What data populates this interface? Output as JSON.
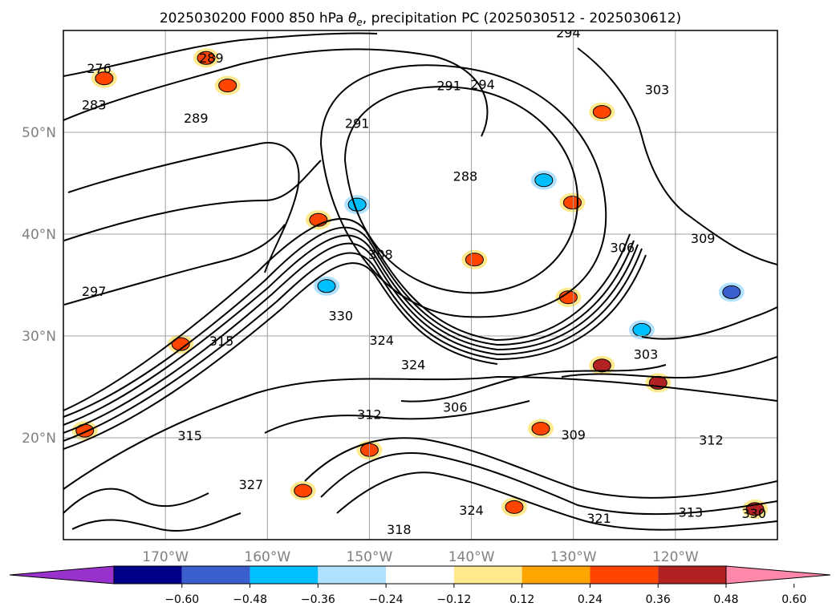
{
  "chart_data": {
    "type": "contour map",
    "title_prefix": "2025030200 F000 850 hPa ",
    "title_symbol": "θ",
    "title_subscript": "e",
    "title_suffix": ", precipitation PC (2025030512 - 2025030612)",
    "lon_range": [
      -180,
      -110
    ],
    "lat_range": [
      10,
      60
    ],
    "lat_ticks": [
      "50°N",
      "40°N",
      "30°N",
      "20°N"
    ],
    "lat_tick_values": [
      50,
      40,
      30,
      20
    ],
    "lon_ticks": [
      "170°W",
      "160°W",
      "150°W",
      "140°W",
      "130°W",
      "120°W"
    ],
    "lon_tick_values": [
      -170,
      -160,
      -150,
      -140,
      -130,
      -120
    ],
    "grid": true,
    "colorbar": {
      "ticks": [
        "−0.60",
        "−0.48",
        "−0.36",
        "−0.24",
        "−0.12",
        "0.12",
        "0.24",
        "0.36",
        "0.48",
        "0.60"
      ],
      "colors": [
        "#9932cc",
        "#00008b",
        "#3a5fcd",
        "#00bfff",
        "#b0e2ff",
        "#ffffff",
        "#ffe98c",
        "#ffa500",
        "#ff4500",
        "#b22222",
        "#ff88aa"
      ],
      "extend": "both"
    },
    "contour_labels": [
      {
        "text": "276",
        "lon": -176.5,
        "lat": 56.2
      },
      {
        "text": "283",
        "lon": -177,
        "lat": 52.6
      },
      {
        "text": "289",
        "lon": -165.5,
        "lat": 57.2
      },
      {
        "text": "289",
        "lon": -167,
        "lat": 51.3
      },
      {
        "text": "294",
        "lon": -130.5,
        "lat": 59.7
      },
      {
        "text": "291",
        "lon": -142.2,
        "lat": 54.5
      },
      {
        "text": "294",
        "lon": -138.9,
        "lat": 54.6
      },
      {
        "text": "303",
        "lon": -121.8,
        "lat": 54.1
      },
      {
        "text": "291",
        "lon": -151.2,
        "lat": 50.8
      },
      {
        "text": "288",
        "lon": -140.6,
        "lat": 45.6
      },
      {
        "text": "308",
        "lon": -148.9,
        "lat": 37.9
      },
      {
        "text": "306",
        "lon": -125.2,
        "lat": 38.6
      },
      {
        "text": "309",
        "lon": -117.3,
        "lat": 39.5
      },
      {
        "text": "297",
        "lon": -177,
        "lat": 34.3
      },
      {
        "text": "330",
        "lon": -152.8,
        "lat": 31.9
      },
      {
        "text": "315",
        "lon": -164.5,
        "lat": 29.4
      },
      {
        "text": "324",
        "lon": -148.8,
        "lat": 29.5
      },
      {
        "text": "324",
        "lon": -145.7,
        "lat": 27.1
      },
      {
        "text": "303",
        "lon": -122.9,
        "lat": 28.1
      },
      {
        "text": "306",
        "lon": -141.6,
        "lat": 22.9
      },
      {
        "text": "312",
        "lon": -150,
        "lat": 22.2
      },
      {
        "text": "309",
        "lon": -130,
        "lat": 20.2
      },
      {
        "text": "312",
        "lon": -116.5,
        "lat": 19.7
      },
      {
        "text": "315",
        "lon": -167.6,
        "lat": 20.1
      },
      {
        "text": "327",
        "lon": -161.6,
        "lat": 15.3
      },
      {
        "text": "324",
        "lon": -140,
        "lat": 12.8
      },
      {
        "text": "318",
        "lon": -147.1,
        "lat": 10.9
      },
      {
        "text": "321",
        "lon": -127.5,
        "lat": 12
      },
      {
        "text": "313",
        "lon": -118.5,
        "lat": 12.6
      },
      {
        "text": "330",
        "lon": -112.3,
        "lat": 12.5
      }
    ],
    "precip_areas": [
      {
        "lon": -163.9,
        "lat": 54.6,
        "value": 0.36
      },
      {
        "lon": -166,
        "lat": 57.3,
        "value": 0.36
      },
      {
        "lon": -176,
        "lat": 55.3,
        "value": 0.36
      },
      {
        "lon": -151.2,
        "lat": 42.9,
        "value": -0.36
      },
      {
        "lon": -155,
        "lat": 41.4,
        "value": 0.36
      },
      {
        "lon": -139.7,
        "lat": 37.5,
        "value": 0.36
      },
      {
        "lon": -132.9,
        "lat": 45.3,
        "value": -0.36
      },
      {
        "lon": -127.2,
        "lat": 52,
        "value": 0.36
      },
      {
        "lon": -114.5,
        "lat": 34.3,
        "value": -0.48
      },
      {
        "lon": -168.5,
        "lat": 29.2,
        "value": 0.36
      },
      {
        "lon": -154.2,
        "lat": 34.9,
        "value": -0.36
      },
      {
        "lon": -156.5,
        "lat": 14.8,
        "value": 0.36
      },
      {
        "lon": -135.8,
        "lat": 13.2,
        "value": 0.36
      },
      {
        "lon": -133.2,
        "lat": 20.9,
        "value": 0.36
      },
      {
        "lon": -121.7,
        "lat": 25.4,
        "value": 0.48
      },
      {
        "lon": -127.2,
        "lat": 27.1,
        "value": 0.48
      },
      {
        "lon": -112.2,
        "lat": 13,
        "value": 0.48
      },
      {
        "lon": -177.9,
        "lat": 20.7,
        "value": 0.36
      },
      {
        "lon": -123.3,
        "lat": 30.6,
        "value": -0.36
      },
      {
        "lon": -130.5,
        "lat": 33.8,
        "value": 0.36
      },
      {
        "lon": -130.1,
        "lat": 43.1,
        "value": 0.36
      },
      {
        "lon": -150,
        "lat": 18.8,
        "value": 0.36
      }
    ]
  }
}
